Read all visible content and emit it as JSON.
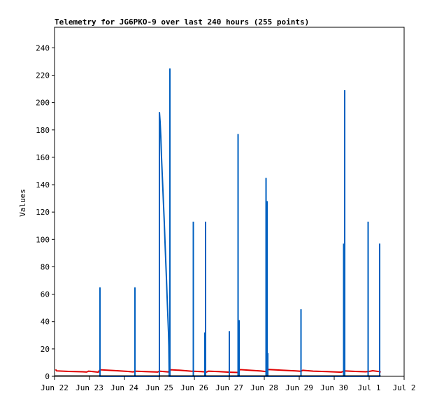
{
  "chart_data": {
    "type": "line",
    "title": "Telemetry for JG6PKO-9 over last 240 hours (255 points)",
    "xlabel": "",
    "ylabel": "Values",
    "ylim": [
      0,
      255
    ],
    "y_ticks": [
      0,
      20,
      40,
      60,
      80,
      100,
      120,
      140,
      160,
      180,
      200,
      220,
      240
    ],
    "x_range_days": [
      0,
      10
    ],
    "x_ticks": [
      {
        "day": 0,
        "label": "Jun 22"
      },
      {
        "day": 1,
        "label": "Jun 23"
      },
      {
        "day": 2,
        "label": "Jun 24"
      },
      {
        "day": 3,
        "label": "Jun 25"
      },
      {
        "day": 4,
        "label": "Jun 26"
      },
      {
        "day": 5,
        "label": "Jun 27"
      },
      {
        "day": 6,
        "label": "Jun 28"
      },
      {
        "day": 7,
        "label": "Jun 29"
      },
      {
        "day": 8,
        "label": "Jun 30"
      },
      {
        "day": 9,
        "label": "Jul 1"
      },
      {
        "day": 10,
        "label": "Jul 2"
      }
    ],
    "grid": false,
    "legend": "none",
    "series": [
      {
        "color": "#e00000",
        "points": [
          [
            0.03,
            5
          ],
          [
            0.06,
            4
          ],
          [
            0.4,
            3.6
          ],
          [
            0.8,
            3.3
          ],
          [
            0.92,
            3.1
          ],
          [
            0.97,
            3.8
          ],
          [
            1.1,
            3.4
          ],
          [
            1.25,
            3
          ],
          [
            1.3,
            4.8
          ],
          [
            1.7,
            4.2
          ],
          [
            2.1,
            3.6
          ],
          [
            2.25,
            3.2
          ],
          [
            2.3,
            3.8
          ],
          [
            2.6,
            3.5
          ],
          [
            2.95,
            3.1
          ],
          [
            3.0,
            3.8
          ],
          [
            3.25,
            3.2
          ],
          [
            3.32,
            4.8
          ],
          [
            3.6,
            4.4
          ],
          [
            3.9,
            3.8
          ],
          [
            4.2,
            3.5
          ],
          [
            4.35,
            3.1
          ],
          [
            4.4,
            3.8
          ],
          [
            4.7,
            3.4
          ],
          [
            5.0,
            3.0
          ],
          [
            5.25,
            2.8
          ],
          [
            5.3,
            4.9
          ],
          [
            5.6,
            4.4
          ],
          [
            5.9,
            3.9
          ],
          [
            6.05,
            3.5
          ],
          [
            6.1,
            5.0
          ],
          [
            6.5,
            4.5
          ],
          [
            6.9,
            4.0
          ],
          [
            7.05,
            3.7
          ],
          [
            7.1,
            4.4
          ],
          [
            7.4,
            3.8
          ],
          [
            7.8,
            3.4
          ],
          [
            8.2,
            3.0
          ],
          [
            8.3,
            4.0
          ],
          [
            8.6,
            3.6
          ],
          [
            8.9,
            3.3
          ],
          [
            9.0,
            3.6
          ],
          [
            9.1,
            4.1
          ],
          [
            9.3,
            3.4
          ],
          [
            9.33,
            2.9
          ]
        ]
      },
      {
        "color": "#0060c0",
        "points": [
          [
            1.3,
            0
          ],
          [
            1.3,
            65
          ],
          [
            1.3,
            0
          ],
          [
            2.3,
            0
          ],
          [
            2.3,
            65
          ],
          [
            2.3,
            0
          ],
          [
            3.0,
            0
          ],
          [
            3.0,
            193
          ],
          [
            3.02,
            186
          ],
          [
            3.04,
            175
          ],
          [
            3.06,
            160
          ],
          [
            3.08,
            148
          ],
          [
            3.1,
            136
          ],
          [
            3.12,
            124
          ],
          [
            3.14,
            112
          ],
          [
            3.16,
            98
          ],
          [
            3.18,
            85
          ],
          [
            3.2,
            72
          ],
          [
            3.22,
            58
          ],
          [
            3.24,
            45
          ],
          [
            3.26,
            32
          ],
          [
            3.27,
            22
          ],
          [
            3.28,
            0
          ],
          [
            3.3,
            0
          ],
          [
            3.3,
            225
          ],
          [
            3.3,
            0
          ],
          [
            3.97,
            0
          ],
          [
            3.97,
            113
          ],
          [
            3.97,
            0
          ],
          [
            4.3,
            0
          ],
          [
            4.3,
            32
          ],
          [
            4.3,
            0
          ],
          [
            4.32,
            0
          ],
          [
            4.32,
            113
          ],
          [
            4.32,
            0
          ],
          [
            5.0,
            0
          ],
          [
            5.0,
            33
          ],
          [
            5.0,
            0
          ],
          [
            5.25,
            0
          ],
          [
            5.25,
            177
          ],
          [
            5.25,
            0
          ],
          [
            5.28,
            0
          ],
          [
            5.28,
            41
          ],
          [
            5.28,
            0
          ],
          [
            6.05,
            0
          ],
          [
            6.05,
            145
          ],
          [
            6.05,
            0
          ],
          [
            6.08,
            0
          ],
          [
            6.08,
            128
          ],
          [
            6.08,
            0
          ],
          [
            6.1,
            0
          ],
          [
            6.1,
            17
          ],
          [
            6.1,
            0
          ],
          [
            7.05,
            0
          ],
          [
            7.05,
            49
          ],
          [
            7.05,
            0
          ],
          [
            8.27,
            0
          ],
          [
            8.27,
            97
          ],
          [
            8.27,
            0
          ],
          [
            8.3,
            0
          ],
          [
            8.3,
            209
          ],
          [
            8.3,
            0
          ],
          [
            8.97,
            0
          ],
          [
            8.97,
            113
          ],
          [
            8.97,
            0
          ],
          [
            9.3,
            0
          ],
          [
            9.3,
            97
          ],
          [
            9.3,
            0
          ]
        ]
      },
      {
        "color": "#000000",
        "points": [
          [
            0.0,
            0.3
          ],
          [
            9.33,
            0.3
          ]
        ]
      }
    ]
  }
}
